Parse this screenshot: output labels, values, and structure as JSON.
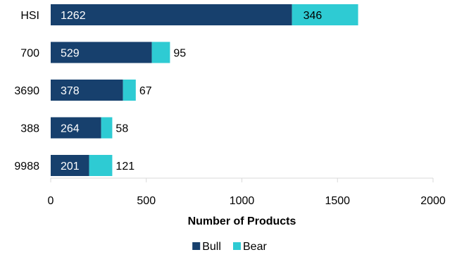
{
  "chart_data": {
    "type": "bar",
    "orientation": "horizontal",
    "stacked": true,
    "categories": [
      "HSI",
      "700",
      "3690",
      "388",
      "9988"
    ],
    "series": [
      {
        "name": "Bull",
        "values": [
          1262,
          529,
          378,
          264,
          201
        ],
        "color": "#17406d",
        "label_position": "inside"
      },
      {
        "name": "Bear",
        "values": [
          346,
          95,
          67,
          58,
          121
        ],
        "color": "#2ecbd3",
        "label_position": "inside-first-only"
      }
    ],
    "xlabel": "Number of Products",
    "ylabel": "",
    "xlim": [
      0,
      2000
    ],
    "xticks": [
      0,
      500,
      1000,
      1500,
      2000
    ],
    "grid": false,
    "legend_position": "bottom"
  }
}
